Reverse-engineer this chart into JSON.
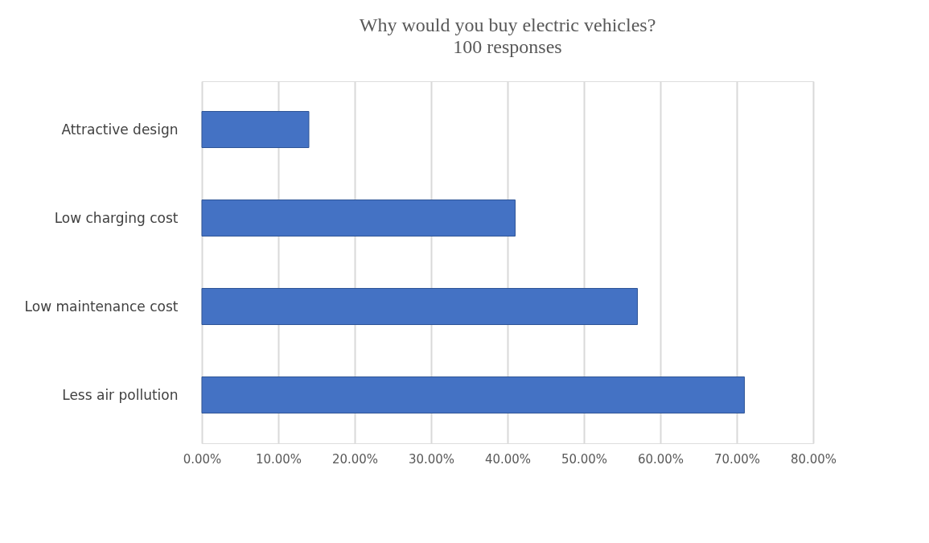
{
  "chart_data": {
    "type": "bar",
    "orientation": "horizontal",
    "title": "Why would you buy electric vehicles?",
    "subtitle": "100 responses",
    "categories": [
      "Attractive design",
      "Low charging cost",
      "Low maintenance cost",
      "Less air pollution"
    ],
    "values": [
      14,
      41,
      57,
      71
    ],
    "color": "#4472c4",
    "xlim": [
      0,
      80
    ],
    "xticks": [
      {
        "value": 0,
        "label": "0.00%"
      },
      {
        "value": 10,
        "label": "10.00%"
      },
      {
        "value": 20,
        "label": "20.00%"
      },
      {
        "value": 30,
        "label": "30.00%"
      },
      {
        "value": 40,
        "label": "40.00%"
      },
      {
        "value": 50,
        "label": "50.00%"
      },
      {
        "value": 60,
        "label": "60.00%"
      },
      {
        "value": 70,
        "label": "70.00%"
      },
      {
        "value": 80,
        "label": "80.00%"
      }
    ],
    "grid": "x"
  }
}
